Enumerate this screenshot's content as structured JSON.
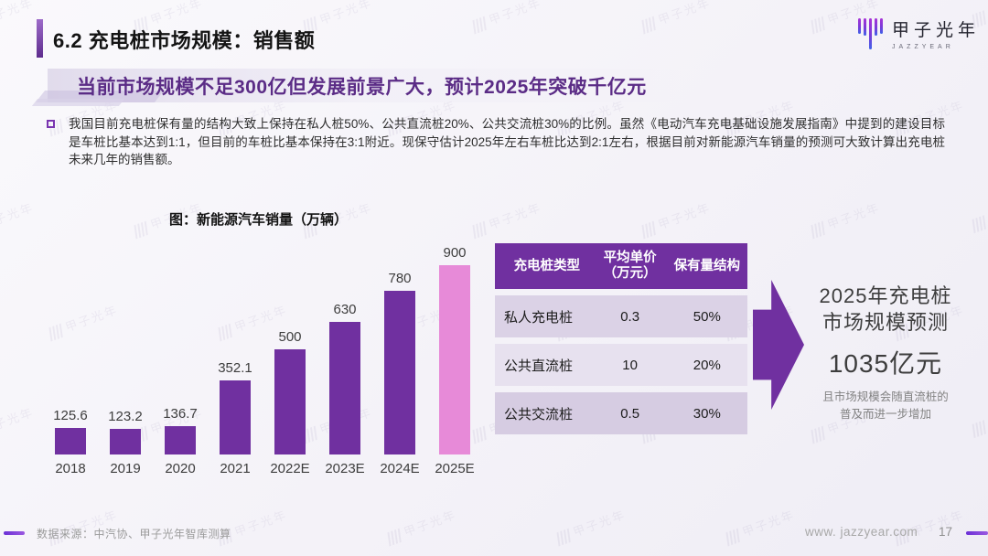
{
  "header": {
    "title": "6.2 充电桩市场规模：销售额",
    "logo_name": "甲子光年",
    "logo_sub": "JAZZYEAR"
  },
  "subtitle": "当前市场规模不足300亿但发展前景广大，预计2025年突破千亿元",
  "body_text": "我国目前充电桩保有量的结构大致上保持在私人桩50%、公共直流桩20%、公共交流桩30%的比例。虽然《电动汽车充电基础设施发展指南》中提到的建设目标是车桩比基本达到1:1，但目前的车桩比基本保持在3:1附近。现保守估计2025年左右车桩比达到2:1左右，根据目前对新能源汽车销量的预测可大致计算出充电桩未来几年的销售额。",
  "chart_data": {
    "type": "bar",
    "title": "图：新能源汽车销量（万辆）",
    "categories": [
      "2018",
      "2019",
      "2020",
      "2021",
      "2022E",
      "2023E",
      "2024E",
      "2025E"
    ],
    "values": [
      125.6,
      123.2,
      136.7,
      352.1,
      500,
      630,
      780,
      900
    ],
    "labels": [
      "125.6",
      "123.2",
      "136.7",
      "352.1",
      "500",
      "630",
      "780",
      "900"
    ],
    "ylim": [
      0,
      900
    ],
    "bar_color": "#7030A0",
    "highlight_color": "#E78AD8",
    "highlight_index": 7,
    "grid": false,
    "legend": false
  },
  "table": {
    "headers": [
      "充电桩类型",
      "平均单价\n（万元）",
      "保有量结构"
    ],
    "rows": [
      [
        "私人充电桩",
        "0.3",
        "50%"
      ],
      [
        "公共直流桩",
        "10",
        "20%"
      ],
      [
        "公共交流桩",
        "0.5",
        "30%"
      ]
    ]
  },
  "prediction": {
    "line1": "2025年充电桩",
    "line2": "市场规模预测",
    "value": "1035亿元",
    "note": "且市场规模会随直流桩的\n普及而进一步增加"
  },
  "footer": {
    "source": "数据来源：中汽协、甲子光年智库测算",
    "website": "www. jazzyear.com",
    "page": "17"
  },
  "watermark_text": "甲子光年",
  "colors": {
    "purple": "#7030A0",
    "pink": "#E78AD8",
    "subtitle_purple": "#5B2C86",
    "table_row_a": "#DBD2E6",
    "table_row_b": "#E7E1EF",
    "table_row_c": "#D6CCE2"
  }
}
